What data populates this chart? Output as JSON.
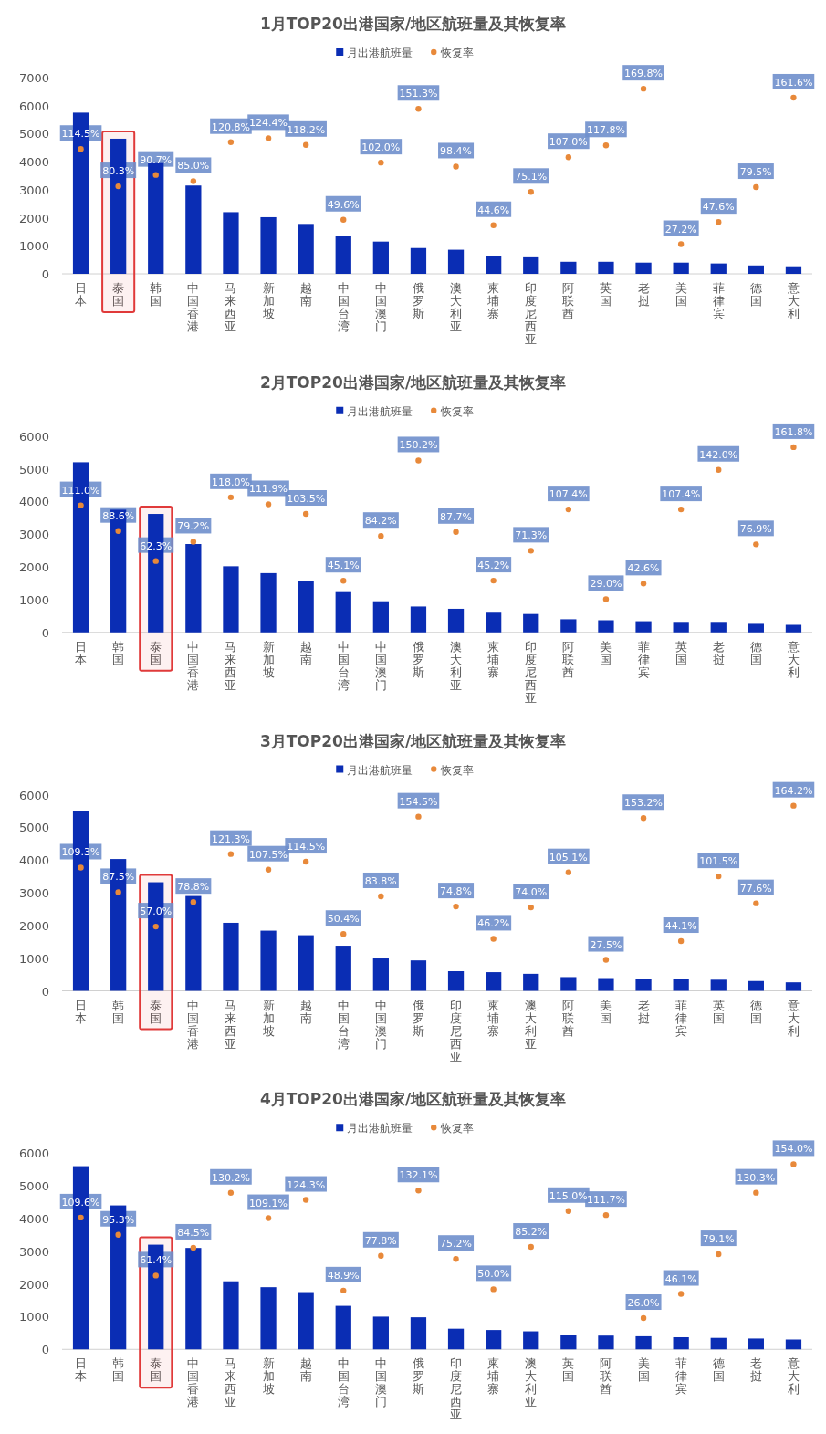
{
  "chart_data": [
    {
      "type": "bar",
      "title": "1月TOP20出港国家/地区航班量及其恢复率",
      "legend": "top",
      "categories": [
        "日本",
        "泰国",
        "韩国",
        "中国香港",
        "马来西亚",
        "新加坡",
        "越南",
        "中国台湾",
        "中国澳门",
        "俄罗斯",
        "澳大利亚",
        "柬埔寨",
        "印度尼西亚",
        "阿联酋",
        "英国",
        "老挝",
        "美国",
        "菲律宾",
        "德国",
        "意大利"
      ],
      "series": [
        {
          "name": "月出港航班量",
          "type": "bar",
          "color": "#0a2db4",
          "values": [
            5750,
            4820,
            3950,
            3150,
            2200,
            2020,
            1780,
            1350,
            1150,
            920,
            860,
            620,
            590,
            430,
            430,
            400,
            400,
            370,
            300,
            270
          ]
        },
        {
          "name": "恢复率",
          "type": "scatter",
          "axis": "y2",
          "color": "#e8893a",
          "values": [
            114.5,
            80.3,
            90.7,
            85.0,
            120.8,
            124.4,
            118.2,
            49.6,
            102.0,
            151.3,
            98.4,
            44.6,
            75.1,
            107.0,
            117.8,
            169.8,
            27.2,
            47.6,
            79.5,
            161.6
          ],
          "value_labels": [
            "114.5%",
            "80.3%",
            "90.7%",
            "85.0%",
            "120.8%",
            "124.4%",
            "118.2%",
            "49.6%",
            "102.0%",
            "151.3%",
            "98.4%",
            "44.6%",
            "75.1%",
            "107.0%",
            "117.8%",
            "169.8%",
            "27.2%",
            "47.6%",
            "79.5%",
            "161.6%"
          ]
        }
      ],
      "ylim": [
        0,
        7000
      ],
      "yticks": [
        0,
        1000,
        2000,
        3000,
        4000,
        5000,
        6000,
        7000
      ],
      "bands": [
        {
          "axis": "x",
          "from": "泰国",
          "to": "泰国",
          "color": "#e03a3a"
        }
      ]
    },
    {
      "type": "bar",
      "title": "2月TOP20出港国家/地区航班量及其恢复率",
      "legend": "top",
      "categories": [
        "日本",
        "韩国",
        "泰国",
        "中国香港",
        "马来西亚",
        "新加坡",
        "越南",
        "中国台湾",
        "中国澳门",
        "俄罗斯",
        "澳大利亚",
        "柬埔寨",
        "印度尼西亚",
        "阿联酋",
        "美国",
        "菲律宾",
        "英国",
        "老挝",
        "德国",
        "意大利"
      ],
      "series": [
        {
          "name": "月出港航班量",
          "type": "bar",
          "color": "#0a2db4",
          "values": [
            5200,
            3750,
            3620,
            2700,
            2020,
            1810,
            1570,
            1230,
            950,
            790,
            720,
            600,
            560,
            400,
            370,
            340,
            320,
            320,
            260,
            230
          ]
        },
        {
          "name": "恢复率",
          "type": "scatter",
          "axis": "y2",
          "color": "#e8893a",
          "values": [
            111.0,
            88.6,
            62.3,
            79.2,
            118.0,
            111.9,
            103.5,
            45.1,
            84.2,
            150.2,
            87.7,
            45.2,
            71.3,
            107.4,
            29.0,
            42.6,
            107.4,
            142.0,
            76.9,
            161.8
          ],
          "value_labels": [
            "111.0%",
            "88.6%",
            "62.3%",
            "79.2%",
            "118.0%",
            "111.9%",
            "103.5%",
            "45.1%",
            "84.2%",
            "150.2%",
            "87.7%",
            "45.2%",
            "71.3%",
            "107.4%",
            "29.0%",
            "42.6%",
            "107.4%",
            "142.0%",
            "76.9%",
            "161.8%"
          ]
        }
      ],
      "ylim": [
        0,
        6000
      ],
      "yticks": [
        0,
        1000,
        2000,
        3000,
        4000,
        5000,
        6000
      ],
      "bands": [
        {
          "axis": "x",
          "from": "泰国",
          "to": "泰国",
          "color": "#e03a3a"
        }
      ]
    },
    {
      "type": "bar",
      "title": "3月TOP20出港国家/地区航班量及其恢复率",
      "legend": "top",
      "categories": [
        "日本",
        "韩国",
        "泰国",
        "中国香港",
        "马来西亚",
        "新加坡",
        "越南",
        "中国台湾",
        "中国澳门",
        "俄罗斯",
        "印度尼西亚",
        "柬埔寨",
        "澳大利亚",
        "阿联酋",
        "美国",
        "老挝",
        "菲律宾",
        "英国",
        "德国",
        "意大利"
      ],
      "series": [
        {
          "name": "月出港航班量",
          "type": "bar",
          "color": "#0a2db4",
          "values": [
            5500,
            4030,
            3320,
            2900,
            2080,
            1840,
            1700,
            1380,
            990,
            930,
            600,
            570,
            520,
            420,
            390,
            370,
            370,
            340,
            300,
            260
          ]
        },
        {
          "name": "恢复率",
          "type": "scatter",
          "axis": "y2",
          "color": "#e8893a",
          "values": [
            109.3,
            87.5,
            57.0,
            78.8,
            121.3,
            107.5,
            114.5,
            50.4,
            83.8,
            154.5,
            74.8,
            46.2,
            74.0,
            105.1,
            27.5,
            153.2,
            44.1,
            101.5,
            77.6,
            164.2
          ],
          "value_labels": [
            "109.3%",
            "87.5%",
            "57.0%",
            "78.8%",
            "121.3%",
            "107.5%",
            "114.5%",
            "50.4%",
            "83.8%",
            "154.5%",
            "74.8%",
            "46.2%",
            "74.0%",
            "105.1%",
            "27.5%",
            "153.2%",
            "44.1%",
            "101.5%",
            "77.6%",
            "164.2%"
          ]
        }
      ],
      "ylim": [
        0,
        6000
      ],
      "yticks": [
        0,
        1000,
        2000,
        3000,
        4000,
        5000,
        6000
      ],
      "bands": [
        {
          "axis": "x",
          "from": "泰国",
          "to": "泰国",
          "color": "#e03a3a"
        }
      ]
    },
    {
      "type": "bar",
      "title": "4月TOP20出港国家/地区航班量及其恢复率",
      "legend": "top",
      "categories": [
        "日本",
        "韩国",
        "泰国",
        "中国香港",
        "马来西亚",
        "新加坡",
        "越南",
        "中国台湾",
        "中国澳门",
        "俄罗斯",
        "印度尼西亚",
        "柬埔寨",
        "澳大利亚",
        "英国",
        "阿联酋",
        "美国",
        "菲律宾",
        "德国",
        "老挝",
        "意大利"
      ],
      "series": [
        {
          "name": "月出港航班量",
          "type": "bar",
          "color": "#0a2db4",
          "values": [
            5600,
            4400,
            3200,
            3100,
            2080,
            1900,
            1750,
            1330,
            1000,
            980,
            630,
            590,
            550,
            450,
            420,
            400,
            370,
            350,
            330,
            300
          ]
        },
        {
          "name": "恢复率",
          "type": "scatter",
          "axis": "y2",
          "color": "#e8893a",
          "values": [
            109.6,
            95.3,
            61.4,
            84.5,
            130.2,
            109.1,
            124.3,
            48.9,
            77.8,
            132.1,
            75.2,
            50.0,
            85.2,
            115.0,
            111.7,
            26.0,
            46.1,
            79.1,
            130.3,
            154.0
          ],
          "value_labels": [
            "109.6%",
            "95.3%",
            "61.4%",
            "84.5%",
            "130.2%",
            "109.1%",
            "124.3%",
            "48.9%",
            "77.8%",
            "132.1%",
            "75.2%",
            "50.0%",
            "85.2%",
            "115.0%",
            "111.7%",
            "26.0%",
            "46.1%",
            "79.1%",
            "130.3%",
            "154.0%"
          ]
        }
      ],
      "ylim": [
        0,
        6000
      ],
      "yticks": [
        0,
        1000,
        2000,
        3000,
        4000,
        5000,
        6000
      ],
      "bands": [
        {
          "axis": "x",
          "from": "泰国",
          "to": "泰国",
          "color": "#e03a3a"
        }
      ]
    }
  ]
}
